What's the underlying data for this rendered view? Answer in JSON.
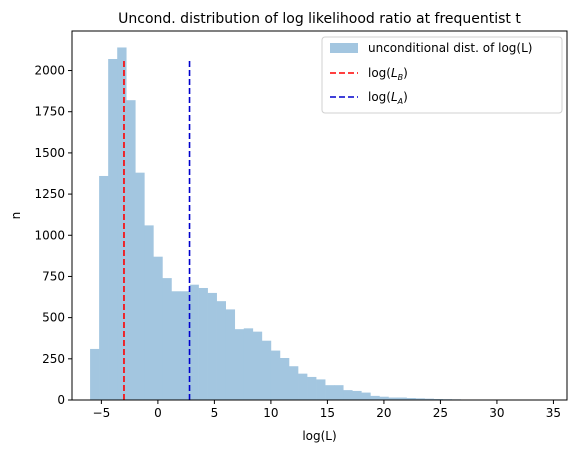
{
  "chart_data": {
    "type": "bar",
    "title": "Uncond. distribution of log likelihood ratio at frequentist  t",
    "xlabel": "log(L)",
    "ylabel": "n",
    "xlim": [
      -7.6,
      36.2
    ],
    "ylim": [
      0,
      2240
    ],
    "xticks": [
      -5,
      0,
      5,
      10,
      15,
      20,
      25,
      30,
      35
    ],
    "yticks": [
      0,
      250,
      500,
      750,
      1000,
      1250,
      1500,
      1750,
      2000
    ],
    "histogram": {
      "name": "unconditional dist. of log(L)",
      "color": "#a3c6e0",
      "bin_start": -6.0,
      "bin_width": 0.8,
      "counts": [
        310,
        1360,
        2070,
        2140,
        1820,
        1380,
        1060,
        870,
        740,
        660,
        660,
        700,
        680,
        650,
        600,
        550,
        430,
        435,
        415,
        360,
        300,
        255,
        205,
        160,
        140,
        125,
        90,
        90,
        60,
        55,
        45,
        25,
        20,
        15,
        15,
        12,
        10,
        8,
        6,
        5,
        4,
        3,
        3,
        2,
        2,
        2,
        1,
        1,
        3,
        1,
        1
      ]
    },
    "vlines": [
      {
        "name_base": "log(",
        "name_sym": "L",
        "name_sub": "B",
        "name_tail": ")",
        "x": -3.0,
        "ymax": 2060,
        "color": "#ff0000"
      },
      {
        "name_base": "log(",
        "name_sym": "L",
        "name_sub": "A",
        "name_tail": ")",
        "x": 2.8,
        "ymax": 2060,
        "color": "#0000cc"
      }
    ],
    "legend_position": "top-right"
  }
}
